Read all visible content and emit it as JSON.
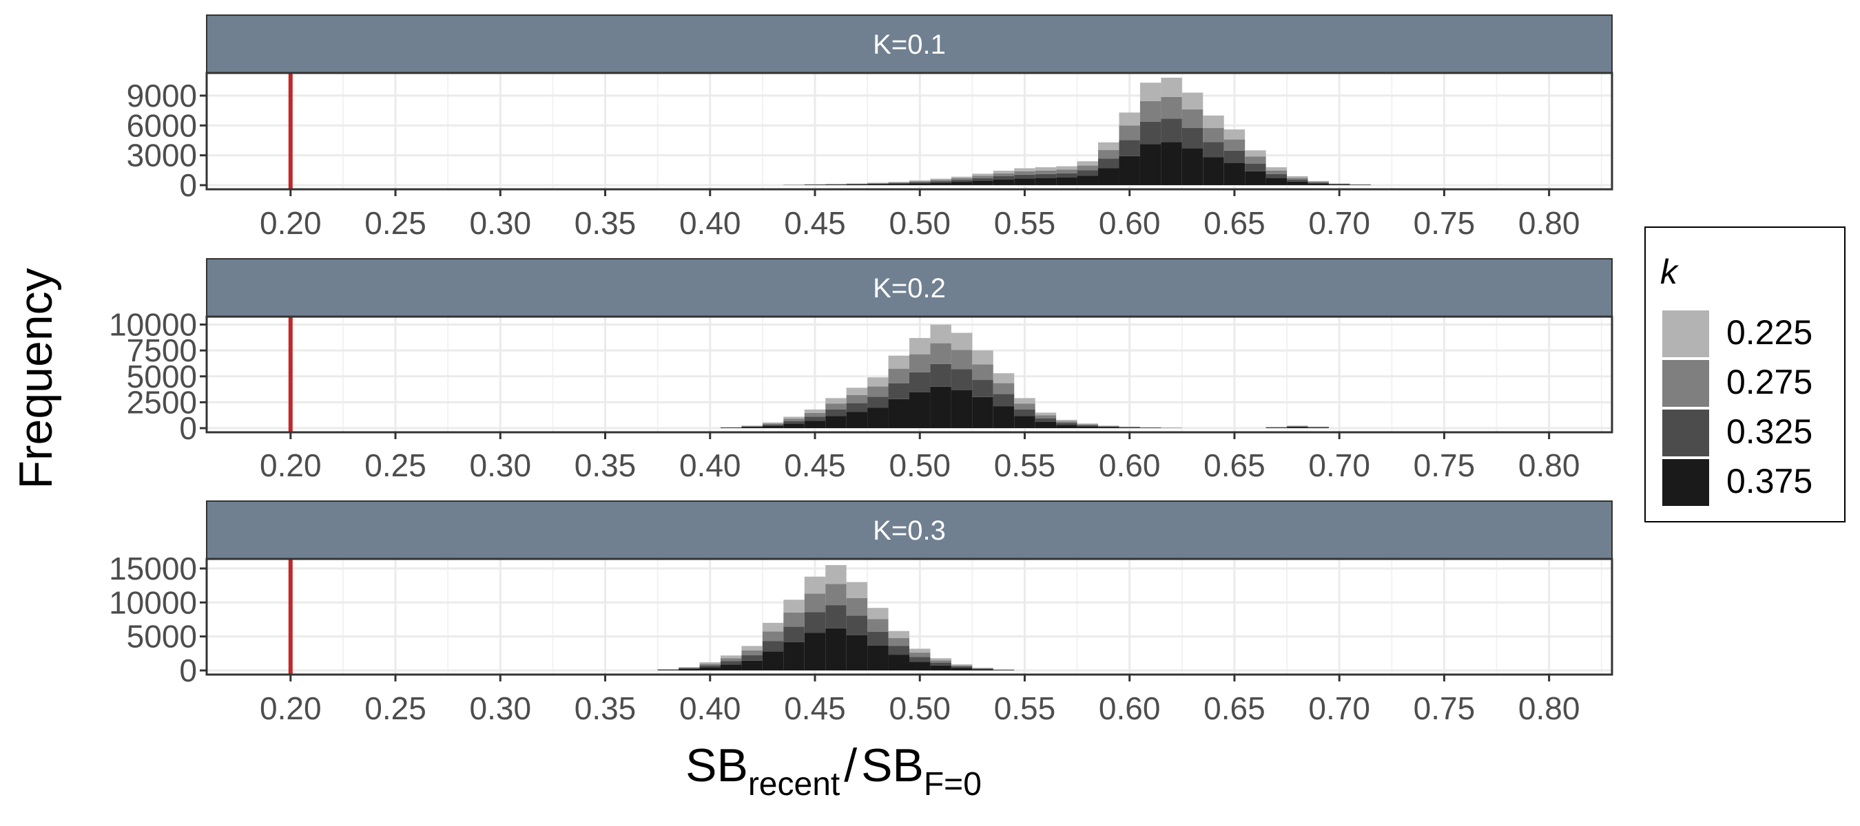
{
  "chart_data": {
    "type": "histogram",
    "title": "",
    "ylabel": "Frequency",
    "xlabel": {
      "main": "SB",
      "sub": "recent",
      "divider": "/",
      "main2": "SB",
      "sub2": "F=0"
    },
    "x_ticks": [
      "0.20",
      "0.25",
      "0.30",
      "0.35",
      "0.40",
      "0.45",
      "0.50",
      "0.55",
      "0.60",
      "0.65",
      "0.70",
      "0.75",
      "0.80"
    ],
    "x_tick_values": [
      0.2,
      0.25,
      0.3,
      0.35,
      0.4,
      0.45,
      0.5,
      0.55,
      0.6,
      0.65,
      0.7,
      0.75,
      0.8
    ],
    "xlim": [
      0.16,
      0.83
    ],
    "bin_width": 0.01,
    "reference_line": {
      "x": 0.2,
      "color": "#c0282a"
    },
    "stack_order_bottom_to_top": [
      "0.375",
      "0.325",
      "0.275",
      "0.225"
    ],
    "legend": {
      "title": "k",
      "position": "right",
      "entries": [
        {
          "label": "0.225",
          "color": "#b3b3b3"
        },
        {
          "label": "0.275",
          "color": "#7f7f7f"
        },
        {
          "label": "0.325",
          "color": "#4c4c4c"
        },
        {
          "label": "0.375",
          "color": "#1a1a1a"
        }
      ]
    },
    "panels": [
      {
        "label": "K=0.1",
        "ylim": [
          0,
          11000
        ],
        "y_ticks": [
          0,
          3000,
          6000,
          9000
        ],
        "y_tick_labels": [
          "0",
          "3000",
          "6000",
          "9000"
        ],
        "bins": [
          {
            "x": 0.44,
            "total": 40
          },
          {
            "x": 0.45,
            "total": 90
          },
          {
            "x": 0.46,
            "total": 130
          },
          {
            "x": 0.47,
            "total": 180
          },
          {
            "x": 0.48,
            "total": 250
          },
          {
            "x": 0.49,
            "total": 330
          },
          {
            "x": 0.5,
            "total": 480
          },
          {
            "x": 0.51,
            "total": 650
          },
          {
            "x": 0.52,
            "total": 850
          },
          {
            "x": 0.53,
            "total": 1150
          },
          {
            "x": 0.54,
            "total": 1450
          },
          {
            "x": 0.55,
            "total": 1700
          },
          {
            "x": 0.56,
            "total": 1800
          },
          {
            "x": 0.57,
            "total": 1900
          },
          {
            "x": 0.58,
            "total": 2400
          },
          {
            "x": 0.59,
            "total": 4300
          },
          {
            "x": 0.6,
            "total": 7300
          },
          {
            "x": 0.61,
            "total": 10300
          },
          {
            "x": 0.62,
            "total": 10800
          },
          {
            "x": 0.63,
            "total": 9300
          },
          {
            "x": 0.64,
            "total": 7000
          },
          {
            "x": 0.65,
            "total": 5600
          },
          {
            "x": 0.66,
            "total": 3500
          },
          {
            "x": 0.67,
            "total": 1800
          },
          {
            "x": 0.68,
            "total": 900
          },
          {
            "x": 0.69,
            "total": 420
          },
          {
            "x": 0.7,
            "total": 180
          },
          {
            "x": 0.71,
            "total": 80
          }
        ]
      },
      {
        "label": "K=0.2",
        "ylim": [
          0,
          10500
        ],
        "y_ticks": [
          0,
          2500,
          5000,
          7500,
          10000
        ],
        "y_tick_labels": [
          "0",
          "2500",
          "5000",
          "7500",
          "10000"
        ],
        "bins": [
          {
            "x": 0.41,
            "total": 100
          },
          {
            "x": 0.42,
            "total": 250
          },
          {
            "x": 0.43,
            "total": 550
          },
          {
            "x": 0.44,
            "total": 1100
          },
          {
            "x": 0.45,
            "total": 1800
          },
          {
            "x": 0.46,
            "total": 2900
          },
          {
            "x": 0.47,
            "total": 3900
          },
          {
            "x": 0.48,
            "total": 4900
          },
          {
            "x": 0.49,
            "total": 7000
          },
          {
            "x": 0.5,
            "total": 8700
          },
          {
            "x": 0.51,
            "total": 10000
          },
          {
            "x": 0.52,
            "total": 9200
          },
          {
            "x": 0.53,
            "total": 7500
          },
          {
            "x": 0.54,
            "total": 5300
          },
          {
            "x": 0.55,
            "total": 2900
          },
          {
            "x": 0.56,
            "total": 1500
          },
          {
            "x": 0.57,
            "total": 800
          },
          {
            "x": 0.58,
            "total": 450
          },
          {
            "x": 0.59,
            "total": 250
          },
          {
            "x": 0.6,
            "total": 150
          },
          {
            "x": 0.61,
            "total": 80
          },
          {
            "x": 0.62,
            "total": 40
          },
          {
            "x": 0.67,
            "total": 120
          },
          {
            "x": 0.68,
            "total": 250
          },
          {
            "x": 0.69,
            "total": 150
          }
        ]
      },
      {
        "label": "K=0.3",
        "ylim": [
          0,
          16000
        ],
        "y_ticks": [
          0,
          5000,
          10000,
          15000
        ],
        "y_tick_labels": [
          "0",
          "5000",
          "10000",
          "15000"
        ],
        "bins": [
          {
            "x": 0.38,
            "total": 200
          },
          {
            "x": 0.39,
            "total": 500
          },
          {
            "x": 0.4,
            "total": 1200
          },
          {
            "x": 0.41,
            "total": 2200
          },
          {
            "x": 0.42,
            "total": 3600
          },
          {
            "x": 0.43,
            "total": 7000
          },
          {
            "x": 0.44,
            "total": 10400
          },
          {
            "x": 0.45,
            "total": 13800
          },
          {
            "x": 0.46,
            "total": 15500
          },
          {
            "x": 0.47,
            "total": 13000
          },
          {
            "x": 0.48,
            "total": 9200
          },
          {
            "x": 0.49,
            "total": 5800
          },
          {
            "x": 0.5,
            "total": 3200
          },
          {
            "x": 0.51,
            "total": 1800
          },
          {
            "x": 0.52,
            "total": 900
          },
          {
            "x": 0.53,
            "total": 400
          },
          {
            "x": 0.54,
            "total": 150
          }
        ]
      }
    ]
  }
}
